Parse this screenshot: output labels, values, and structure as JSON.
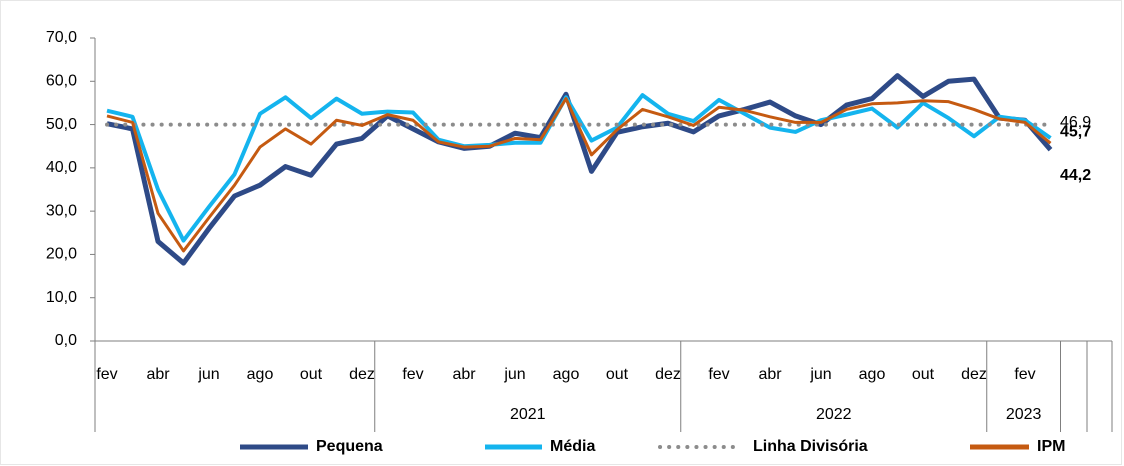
{
  "chart_data": {
    "type": "line",
    "categories": [
      "fev",
      null,
      "abr",
      null,
      "jun",
      null,
      "ago",
      null,
      "out",
      null,
      "dez",
      null,
      "fev",
      null,
      "abr",
      null,
      "jun",
      null,
      "ago",
      null,
      "out",
      null,
      "dez",
      null,
      "fev",
      null,
      "abr",
      null,
      "jun",
      null,
      "ago",
      null,
      "out",
      null,
      "dez",
      null,
      "fev",
      null
    ],
    "year_labels": [
      "2021",
      "2022",
      "2023"
    ],
    "ylim": [
      0,
      70
    ],
    "yticks": [
      {
        "value": 0,
        "label": "0,0"
      },
      {
        "value": 10,
        "label": "10,0"
      },
      {
        "value": 20,
        "label": "20,0"
      },
      {
        "value": 30,
        "label": "30,0"
      },
      {
        "value": 40,
        "label": "40,0"
      },
      {
        "value": 50,
        "label": "50,0"
      },
      {
        "value": 60,
        "label": "60,0"
      },
      {
        "value": 70,
        "label": "70,0"
      }
    ],
    "series": [
      {
        "name": "Pequena",
        "color": "#2E4A87",
        "dash": "solid",
        "values": [
          50.2,
          49,
          23,
          18,
          26,
          33.5,
          36,
          40.3,
          38.3,
          45.5,
          46.8,
          52,
          49,
          46,
          44.5,
          45,
          48,
          47,
          57,
          39.2,
          48.2,
          49.5,
          50.3,
          48.3,
          52,
          53.5,
          55.2,
          52,
          50,
          54.5,
          56,
          61.3,
          56.5,
          60,
          60.5,
          51.5,
          51,
          44.2
        ],
        "value_labels": [
          null,
          null,
          null,
          null,
          null,
          null,
          null,
          null,
          null,
          null,
          null,
          null,
          null,
          null,
          null,
          null,
          null,
          null,
          null,
          null,
          null,
          null,
          null,
          null,
          null,
          null,
          null,
          null,
          null,
          null,
          null,
          null,
          null,
          null,
          null,
          null,
          null,
          "44,2"
        ]
      },
      {
        "name": "Média",
        "color": "#14B4EE",
        "dash": "solid",
        "values": [
          53.2,
          51.8,
          35,
          23.2,
          31,
          38.5,
          52.5,
          56.3,
          51.5,
          56,
          52.5,
          53,
          52.8,
          46.5,
          45,
          45.3,
          45.8,
          45.8,
          56.3,
          46.3,
          49.3,
          56.8,
          52.5,
          50.8,
          55.7,
          52.5,
          49.3,
          48.3,
          51,
          52.3,
          53.7,
          49.3,
          55,
          51.5,
          47.3,
          51.8,
          51,
          46.9
        ],
        "value_labels": [
          null,
          null,
          null,
          null,
          null,
          null,
          null,
          null,
          null,
          null,
          null,
          null,
          null,
          null,
          null,
          null,
          null,
          null,
          null,
          null,
          null,
          null,
          null,
          null,
          null,
          null,
          null,
          null,
          null,
          null,
          null,
          null,
          null,
          null,
          null,
          null,
          null,
          "46,9"
        ]
      },
      {
        "name": "Linha Divisória",
        "color": "#8C8C8C",
        "dash": "dotted",
        "values": [
          50,
          50,
          50,
          50,
          50,
          50,
          50,
          50,
          50,
          50,
          50,
          50,
          50,
          50,
          50,
          50,
          50,
          50,
          50,
          50,
          50,
          50,
          50,
          50,
          50,
          50,
          50,
          50,
          50,
          50,
          50,
          50,
          50,
          50,
          50,
          50,
          50,
          50
        ]
      },
      {
        "name": "IPM",
        "color": "#C55A11",
        "dash": "solid",
        "values": [
          52,
          50.5,
          29.5,
          20.8,
          28.5,
          36,
          44.8,
          49,
          45.5,
          51,
          49.8,
          52.3,
          51,
          46,
          44.8,
          45,
          46.8,
          46.5,
          56,
          43,
          48.8,
          53.5,
          51.8,
          49.8,
          54,
          53.3,
          51.8,
          50.5,
          50.5,
          53.5,
          54.8,
          55,
          55.5,
          55.3,
          53.5,
          51.3,
          50.5,
          45.7
        ],
        "value_labels": [
          null,
          null,
          null,
          null,
          null,
          null,
          null,
          null,
          null,
          null,
          null,
          null,
          null,
          null,
          null,
          null,
          null,
          null,
          null,
          null,
          null,
          null,
          null,
          null,
          null,
          null,
          null,
          null,
          null,
          null,
          null,
          null,
          null,
          null,
          null,
          null,
          null,
          "45,7"
        ]
      }
    ],
    "legend": "bottom"
  }
}
